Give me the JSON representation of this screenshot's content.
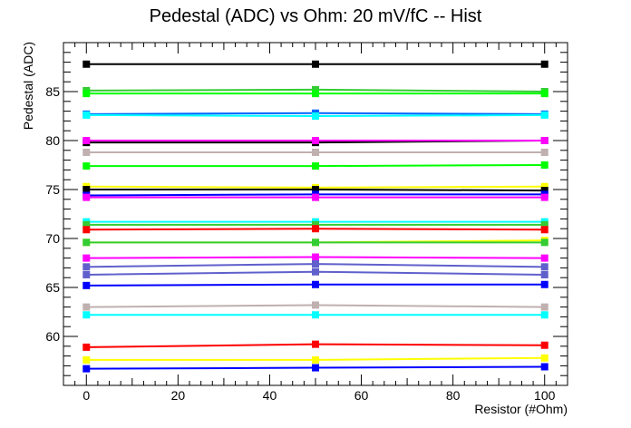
{
  "chart_data": {
    "type": "line",
    "title": "Pedestal (ADC) vs Ohm: 20 mV/fC -- Hist",
    "xlabel": "Resistor (#Ohm)",
    "ylabel": "Pedestal (ADC)",
    "xlim": [
      -5,
      105
    ],
    "ylim": [
      55,
      90
    ],
    "x_ticks": [
      0,
      20,
      40,
      60,
      80,
      100
    ],
    "y_ticks": [
      60,
      65,
      70,
      75,
      80,
      85
    ],
    "grid": false,
    "x": [
      0,
      50,
      100
    ],
    "series": [
      {
        "color": "#000000",
        "values": [
          87.8,
          87.8,
          87.8
        ]
      },
      {
        "color": "#33cc33",
        "values": [
          85.1,
          85.2,
          85.0
        ]
      },
      {
        "color": "#00ff00",
        "values": [
          84.8,
          84.8,
          84.8
        ]
      },
      {
        "color": "#0066ff",
        "values": [
          82.7,
          82.8,
          82.7
        ]
      },
      {
        "color": "#00ffff",
        "values": [
          82.6,
          82.5,
          82.6
        ]
      },
      {
        "color": "#000000",
        "values": [
          79.8,
          79.8,
          80.0
        ]
      },
      {
        "color": "#ff00ff",
        "values": [
          80.0,
          80.0,
          80.0
        ]
      },
      {
        "color": "#c0b0b0",
        "values": [
          78.8,
          78.8,
          78.8
        ]
      },
      {
        "color": "#00ff00",
        "values": [
          77.4,
          77.4,
          77.5
        ]
      },
      {
        "color": "#ffff00",
        "values": [
          75.3,
          75.2,
          75.3
        ]
      },
      {
        "color": "#000000",
        "values": [
          75.0,
          75.0,
          74.9
        ]
      },
      {
        "color": "#0000ff",
        "values": [
          74.4,
          74.5,
          74.5
        ]
      },
      {
        "color": "#ff00ff",
        "values": [
          74.2,
          74.2,
          74.2
        ]
      },
      {
        "color": "#00ffff",
        "values": [
          71.7,
          71.7,
          71.7
        ]
      },
      {
        "color": "#33cc33",
        "values": [
          71.4,
          71.4,
          71.4
        ]
      },
      {
        "color": "#ff0000",
        "values": [
          70.9,
          71.0,
          70.9
        ]
      },
      {
        "color": "#ffff00",
        "values": [
          69.6,
          69.6,
          69.8
        ]
      },
      {
        "color": "#33cc33",
        "values": [
          69.6,
          69.6,
          69.6
        ]
      },
      {
        "color": "#ff00ff",
        "values": [
          68.0,
          68.1,
          68.0
        ]
      },
      {
        "color": "#6060cc",
        "values": [
          67.1,
          67.4,
          67.1
        ]
      },
      {
        "color": "#6060cc",
        "values": [
          66.3,
          66.6,
          66.3
        ]
      },
      {
        "color": "#0000ff",
        "values": [
          65.2,
          65.3,
          65.3
        ]
      },
      {
        "color": "#c0b0b0",
        "values": [
          63.0,
          63.2,
          63.0
        ]
      },
      {
        "color": "#00ffff",
        "values": [
          62.2,
          62.2,
          62.2
        ]
      },
      {
        "color": "#ff0000",
        "values": [
          58.9,
          59.2,
          59.1
        ]
      },
      {
        "color": "#ffff00",
        "values": [
          57.6,
          57.6,
          57.8
        ]
      },
      {
        "color": "#0000ff",
        "values": [
          56.7,
          56.8,
          56.9
        ]
      }
    ]
  }
}
